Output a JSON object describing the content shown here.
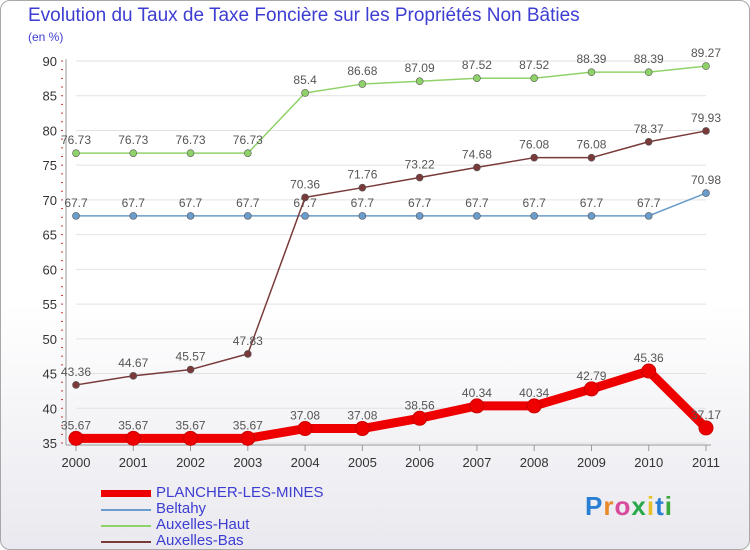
{
  "chart_data": {
    "type": "line",
    "title": "Evolution du Taux de Taxe Foncière sur les Propriétés Non Bâties",
    "unit_label": "(en %)",
    "x": [
      "2000",
      "2001",
      "2002",
      "2003",
      "2004",
      "2005",
      "2006",
      "2007",
      "2008",
      "2009",
      "2010",
      "2011"
    ],
    "ylim": [
      35,
      90
    ],
    "yticks": [
      "35",
      "40",
      "45",
      "50",
      "55",
      "60",
      "65",
      "70",
      "75",
      "80",
      "85",
      "90"
    ],
    "series": [
      {
        "name": "PLANCHER-LES-MINES",
        "color": "#ee0000",
        "values": [
          35.67,
          35.67,
          35.67,
          35.67,
          37.08,
          37.08,
          38.56,
          40.34,
          40.34,
          42.79,
          45.36,
          37.17
        ],
        "labels": [
          "35.67",
          "35.67",
          "35.67",
          "35.67",
          "37.08",
          "37.08",
          "38.56",
          "40.34",
          "40.34",
          "42.79",
          "45.36",
          "37.17"
        ]
      },
      {
        "name": "Beltahy",
        "color": "#6a9ccc",
        "values": [
          67.7,
          67.7,
          67.7,
          67.7,
          67.7,
          67.7,
          67.7,
          67.7,
          67.7,
          67.7,
          67.7,
          70.98
        ],
        "labels": [
          "67.7",
          "67.7",
          "67.7",
          "67.7",
          "67.7",
          "67.7",
          "67.7",
          "67.7",
          "67.7",
          "67.7",
          "67.7",
          "70.98"
        ]
      },
      {
        "name": "Auxelles-Haut",
        "color": "#90d26a",
        "values": [
          76.73,
          76.73,
          76.73,
          76.73,
          85.4,
          86.68,
          87.09,
          87.52,
          87.52,
          88.39,
          88.39,
          89.27
        ],
        "labels": [
          "76.73",
          "76.73",
          "76.73",
          "76.73",
          "85.4",
          "86.68",
          "87.09",
          "87.52",
          "87.52",
          "88.39",
          "88.39",
          "89.27"
        ]
      },
      {
        "name": "Auxelles-Bas",
        "color": "#7a3a3a",
        "values": [
          43.36,
          44.67,
          45.57,
          47.83,
          70.36,
          71.76,
          73.22,
          74.68,
          76.08,
          76.08,
          78.37,
          79.93
        ],
        "labels": [
          "43.36",
          "44.67",
          "45.57",
          "47.83",
          "70.36",
          "71.76",
          "73.22",
          "74.68",
          "76.08",
          "76.08",
          "78.37",
          "79.93"
        ]
      }
    ]
  },
  "branding": {
    "logo_text": "Proxiti"
  }
}
